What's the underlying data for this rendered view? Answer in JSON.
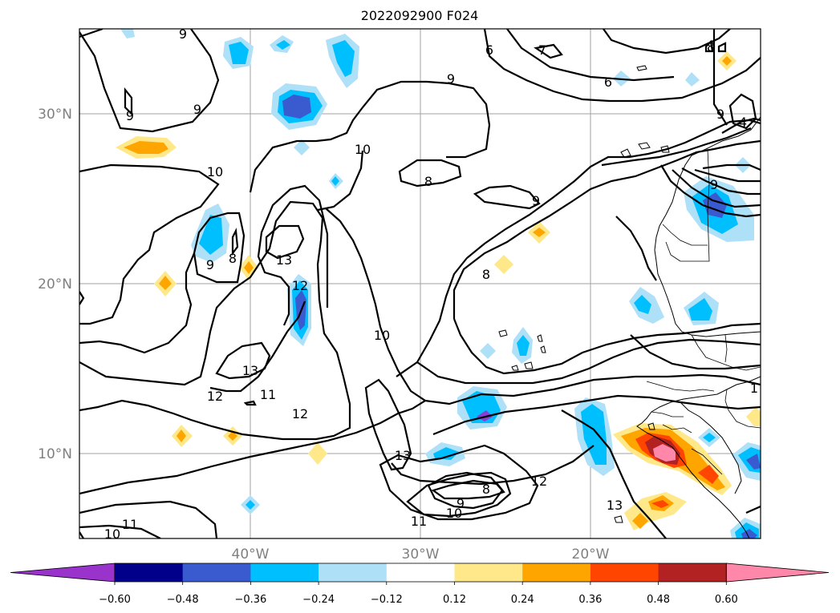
{
  "title": "2022092900 F024",
  "lat_ticks": [
    "30°N",
    "20°N",
    "10°N"
  ],
  "lon_ticks": [
    "40°W",
    "30°W",
    "20°W"
  ],
  "colorbar": {
    "ticks": [
      "−0.60",
      "−0.48",
      "−0.36",
      "−0.24",
      "−0.12",
      "0.12",
      "0.24",
      "0.36",
      "0.48",
      "0.60"
    ],
    "colors": [
      "#9933cc",
      "#00008b",
      "#3a5bd0",
      "#00bfff",
      "#aee0f8",
      "#ffffff",
      "#ffe88a",
      "#ffa500",
      "#ff4500",
      "#b22222",
      "#ff88aa"
    ],
    "extend": "both"
  },
  "contour_labels": [
    "9",
    "9",
    "9",
    "10",
    "9",
    "8",
    "6",
    "7",
    "9",
    "8",
    "9",
    "10",
    "8",
    "13",
    "12",
    "13",
    "12",
    "11",
    "12",
    "10",
    "13",
    "12",
    "9",
    "10",
    "11",
    "13",
    "11",
    "10",
    "8",
    "9",
    "6",
    "8",
    "4",
    "9",
    "1"
  ],
  "domain": {
    "lon_range": [
      -50,
      -10
    ],
    "lat_range": [
      5,
      35
    ]
  }
}
